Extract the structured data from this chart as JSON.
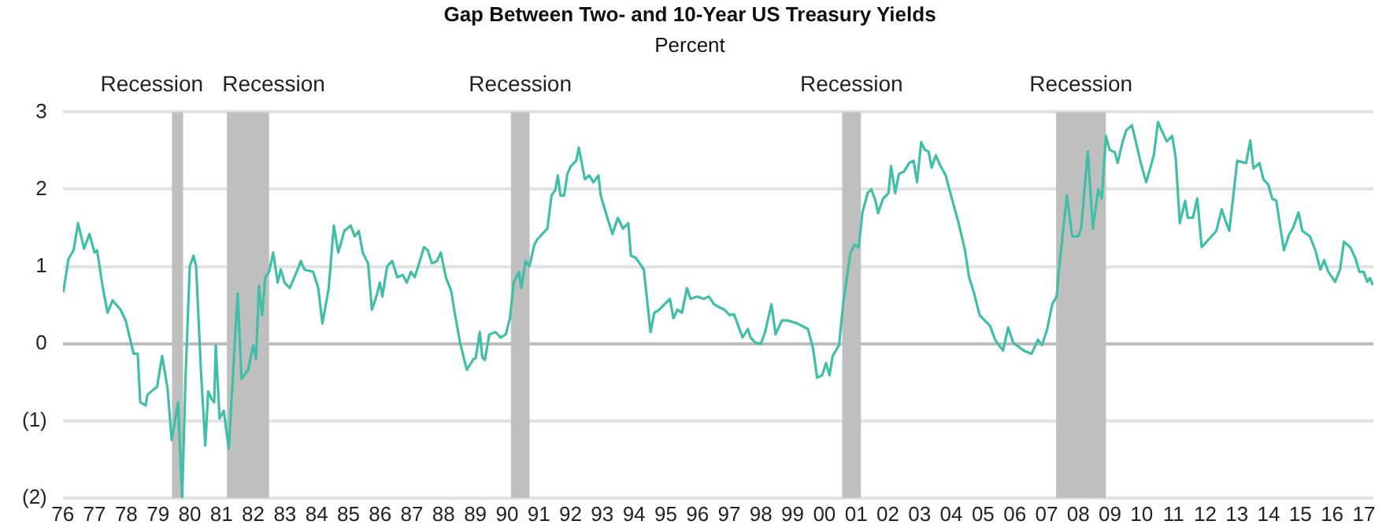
{
  "chart_data": {
    "type": "line",
    "title": "Gap Between Two- and 10-Year US Treasury Yields",
    "subtitle": "Percent",
    "xlim": [
      1976,
      2017.3
    ],
    "xticks": [
      {
        "value": 1976,
        "label": "76"
      },
      {
        "value": 1977,
        "label": "77"
      },
      {
        "value": 1978,
        "label": "78"
      },
      {
        "value": 1979,
        "label": "79"
      },
      {
        "value": 1980,
        "label": "80"
      },
      {
        "value": 1981,
        "label": "81"
      },
      {
        "value": 1982,
        "label": "82"
      },
      {
        "value": 1983,
        "label": "83"
      },
      {
        "value": 1984,
        "label": "84"
      },
      {
        "value": 1985,
        "label": "85"
      },
      {
        "value": 1986,
        "label": "86"
      },
      {
        "value": 1987,
        "label": "87"
      },
      {
        "value": 1988,
        "label": "88"
      },
      {
        "value": 1989,
        "label": "89"
      },
      {
        "value": 1990,
        "label": "90"
      },
      {
        "value": 1991,
        "label": "91"
      },
      {
        "value": 1992,
        "label": "92"
      },
      {
        "value": 1993,
        "label": "93"
      },
      {
        "value": 1994,
        "label": "94"
      },
      {
        "value": 1995,
        "label": "95"
      },
      {
        "value": 1996,
        "label": "96"
      },
      {
        "value": 1997,
        "label": "97"
      },
      {
        "value": 1998,
        "label": "98"
      },
      {
        "value": 1999,
        "label": "99"
      },
      {
        "value": 2000,
        "label": "00"
      },
      {
        "value": 2001,
        "label": "01"
      },
      {
        "value": 2002,
        "label": "02"
      },
      {
        "value": 2003,
        "label": "03"
      },
      {
        "value": 2004,
        "label": "04"
      },
      {
        "value": 2005,
        "label": "05"
      },
      {
        "value": 2006,
        "label": "06"
      },
      {
        "value": 2007,
        "label": "07"
      },
      {
        "value": 2008,
        "label": "08"
      },
      {
        "value": 2009,
        "label": "09"
      },
      {
        "value": 2010,
        "label": "10"
      },
      {
        "value": 2011,
        "label": "11"
      },
      {
        "value": 2012,
        "label": "12"
      },
      {
        "value": 2013,
        "label": "13"
      },
      {
        "value": 2014,
        "label": "14"
      },
      {
        "value": 2015,
        "label": "15"
      },
      {
        "value": 2016,
        "label": "16"
      },
      {
        "value": 2017,
        "label": "17"
      }
    ],
    "ylim": [
      -2,
      3
    ],
    "yticks": [
      3,
      2,
      1,
      0,
      {
        "value": -1,
        "label": "(1)"
      },
      {
        "value": -2,
        "label": "(2)"
      }
    ],
    "grid": "y",
    "legend": false,
    "marker": "none",
    "line_style": "solid",
    "bands": [
      {
        "axis": "x",
        "from": 1979.44,
        "to": 1979.79,
        "label": "Recession",
        "color": "#bfbfbf"
      },
      {
        "axis": "x",
        "from": 1981.17,
        "to": 1982.5,
        "label": "Recession",
        "color": "#bfbfbf"
      },
      {
        "axis": "x",
        "from": 1990.12,
        "to": 1990.71,
        "label": "Recession",
        "color": "#bfbfbf"
      },
      {
        "axis": "x",
        "from": 2000.56,
        "to": 2001.15,
        "label": "Recession",
        "color": "#bfbfbf"
      },
      {
        "axis": "x",
        "from": 2007.3,
        "to": 2008.87,
        "label": "Recession",
        "color": "#bfbfbf"
      }
    ],
    "series": [
      {
        "color": "#40bfa8",
        "x": [
          1976.02,
          1976.18,
          1976.34,
          1976.48,
          1976.67,
          1976.84,
          1977.0,
          1977.08,
          1977.25,
          1977.41,
          1977.57,
          1977.82,
          1977.98,
          1978.23,
          1978.36,
          1978.44,
          1978.61,
          1978.67,
          1978.97,
          1979.13,
          1979.3,
          1979.43,
          1979.63,
          1979.76,
          1979.87,
          1980.0,
          1980.12,
          1980.2,
          1980.36,
          1980.49,
          1980.58,
          1980.69,
          1980.77,
          1980.82,
          1980.94,
          1981.07,
          1981.23,
          1981.4,
          1981.51,
          1981.63,
          1981.84,
          1982.0,
          1982.09,
          1982.18,
          1982.28,
          1982.38,
          1982.5,
          1982.63,
          1982.77,
          1982.87,
          1982.99,
          1983.15,
          1983.4,
          1983.5,
          1983.61,
          1983.89,
          1984.05,
          1984.18,
          1984.38,
          1984.54,
          1984.68,
          1984.87,
          1985.07,
          1985.2,
          1985.33,
          1985.45,
          1985.62,
          1985.74,
          1985.86,
          1985.99,
          1986.07,
          1986.22,
          1986.38,
          1986.54,
          1986.71,
          1986.84,
          1986.97,
          1987.09,
          1987.25,
          1987.38,
          1987.5,
          1987.63,
          1987.79,
          1987.91,
          1988.07,
          1988.24,
          1988.35,
          1988.52,
          1988.73,
          1988.94,
          1989.01,
          1989.14,
          1989.22,
          1989.3,
          1989.44,
          1989.63,
          1989.8,
          1989.96,
          1990.09,
          1990.21,
          1990.37,
          1990.45,
          1990.58,
          1990.7,
          1990.86,
          1990.95,
          1991.11,
          1991.27,
          1991.4,
          1991.52,
          1991.6,
          1991.68,
          1991.8,
          1991.9,
          1992.01,
          1992.18,
          1992.26,
          1992.45,
          1992.59,
          1992.72,
          1992.88,
          1992.95,
          1993.16,
          1993.32,
          1993.49,
          1993.65,
          1993.82,
          1993.9,
          1994.06,
          1994.31,
          1994.52,
          1994.64,
          1994.8,
          1994.96,
          1995.13,
          1995.24,
          1995.37,
          1995.51,
          1995.67,
          1995.78,
          1996.0,
          1996.19,
          1996.36,
          1996.52,
          1996.69,
          1996.85,
          1997.01,
          1997.15,
          1997.26,
          1997.42,
          1997.59,
          1997.67,
          1997.83,
          1998.0,
          1998.13,
          1998.33,
          1998.46,
          1998.66,
          1998.85,
          1999.15,
          1999.48,
          1999.64,
          1999.77,
          1999.93,
          2000.05,
          2000.16,
          2000.26,
          2000.46,
          2000.59,
          2000.71,
          2000.82,
          2000.95,
          2001.08,
          2001.2,
          2001.36,
          2001.48,
          2001.61,
          2001.69,
          2001.85,
          2002.02,
          2002.1,
          2002.23,
          2002.35,
          2002.51,
          2002.67,
          2002.81,
          2002.92,
          2003.05,
          2003.17,
          2003.28,
          2003.38,
          2003.51,
          2003.66,
          2003.82,
          2003.99,
          2004.23,
          2004.43,
          2004.56,
          2004.72,
          2004.89,
          2005.05,
          2005.22,
          2005.38,
          2005.63,
          2005.79,
          2005.95,
          2006.12,
          2006.28,
          2006.53,
          2006.73,
          2006.86,
          2007.02,
          2007.18,
          2007.32,
          2007.4,
          2007.64,
          2007.81,
          2008.0,
          2008.09,
          2008.3,
          2008.46,
          2008.63,
          2008.74,
          2008.87,
          2008.99,
          2009.15,
          2009.24,
          2009.4,
          2009.51,
          2009.69,
          2009.81,
          2009.97,
          2010.14,
          2010.38,
          2010.51,
          2010.63,
          2010.79,
          2010.96,
          2011.07,
          2011.2,
          2011.37,
          2011.45,
          2011.61,
          2011.75,
          2011.89,
          2012.11,
          2012.35,
          2012.52,
          2012.63,
          2012.76,
          2013.01,
          2013.17,
          2013.29,
          2013.42,
          2013.52,
          2013.71,
          2013.83,
          2013.99,
          2014.11,
          2014.24,
          2014.48,
          2014.65,
          2014.76,
          2014.94,
          2015.06,
          2015.3,
          2015.47,
          2015.63,
          2015.75,
          2015.88,
          2016.09,
          2016.25,
          2016.37,
          2016.57,
          2016.73,
          2016.86,
          2016.99,
          2017.11,
          2017.19,
          2017.27
        ],
        "values": [
          0.68,
          1.1,
          1.21,
          1.56,
          1.23,
          1.42,
          1.18,
          1.21,
          0.75,
          0.4,
          0.56,
          0.44,
          0.3,
          -0.13,
          -0.13,
          -0.76,
          -0.8,
          -0.66,
          -0.56,
          -0.16,
          -0.58,
          -1.25,
          -0.76,
          -2.0,
          -0.41,
          1.0,
          1.14,
          1.0,
          -0.41,
          -1.32,
          -0.62,
          -0.72,
          -0.76,
          -0.02,
          -0.97,
          -0.87,
          -1.36,
          -0.13,
          0.65,
          -0.46,
          -0.34,
          -0.02,
          -0.2,
          0.75,
          0.37,
          0.86,
          0.93,
          1.18,
          0.79,
          0.96,
          0.79,
          0.72,
          0.96,
          1.07,
          0.96,
          0.93,
          0.72,
          0.26,
          0.72,
          1.53,
          1.18,
          1.46,
          1.53,
          1.39,
          1.46,
          1.18,
          1.04,
          0.44,
          0.58,
          0.79,
          0.61,
          1.0,
          1.07,
          0.86,
          0.89,
          0.79,
          0.93,
          0.86,
          1.07,
          1.25,
          1.21,
          1.04,
          1.07,
          1.18,
          0.86,
          0.68,
          0.4,
          0.01,
          -0.34,
          -0.2,
          -0.19,
          0.15,
          -0.18,
          -0.21,
          0.12,
          0.15,
          0.08,
          0.12,
          0.33,
          0.79,
          0.93,
          0.72,
          1.07,
          1.0,
          1.28,
          1.35,
          1.42,
          1.49,
          1.92,
          1.99,
          2.18,
          1.92,
          1.92,
          2.2,
          2.3,
          2.37,
          2.54,
          2.13,
          2.18,
          2.09,
          2.18,
          1.92,
          1.63,
          1.42,
          1.63,
          1.49,
          1.56,
          1.14,
          1.11,
          0.96,
          0.15,
          0.4,
          0.44,
          0.51,
          0.58,
          0.33,
          0.44,
          0.4,
          0.72,
          0.58,
          0.61,
          0.58,
          0.61,
          0.51,
          0.47,
          0.44,
          0.37,
          0.38,
          0.26,
          0.08,
          0.19,
          0.08,
          0.01,
          0.0,
          0.15,
          0.51,
          0.12,
          0.3,
          0.3,
          0.26,
          0.19,
          -0.06,
          -0.44,
          -0.41,
          -0.25,
          -0.41,
          -0.16,
          -0.02,
          0.51,
          0.86,
          1.18,
          1.28,
          1.25,
          1.7,
          1.95,
          2.0,
          1.85,
          1.69,
          1.88,
          1.95,
          2.3,
          1.95,
          2.2,
          2.23,
          2.34,
          2.37,
          2.09,
          2.61,
          2.51,
          2.49,
          2.28,
          2.44,
          2.3,
          2.18,
          1.92,
          1.56,
          1.21,
          0.86,
          0.65,
          0.37,
          0.3,
          0.23,
          0.05,
          -0.09,
          0.21,
          0.01,
          -0.04,
          -0.09,
          -0.13,
          0.05,
          -0.02,
          0.19,
          0.51,
          0.61,
          1.0,
          1.92,
          1.39,
          1.39,
          1.49,
          2.49,
          1.49,
          2.0,
          1.88,
          2.69,
          2.51,
          2.48,
          2.34,
          2.62,
          2.76,
          2.83,
          2.62,
          2.34,
          2.09,
          2.44,
          2.87,
          2.76,
          2.62,
          2.69,
          2.41,
          1.56,
          1.85,
          1.63,
          1.63,
          1.88,
          1.25,
          1.35,
          1.46,
          1.74,
          1.6,
          1.46,
          2.37,
          2.35,
          2.34,
          2.63,
          2.27,
          2.34,
          2.13,
          2.06,
          1.88,
          1.85,
          1.21,
          1.42,
          1.49,
          1.7,
          1.46,
          1.39,
          1.21,
          0.96,
          1.08,
          0.93,
          0.8,
          0.96,
          1.32,
          1.25,
          1.11,
          0.93,
          0.93,
          0.8,
          0.85,
          0.77
        ]
      }
    ]
  }
}
